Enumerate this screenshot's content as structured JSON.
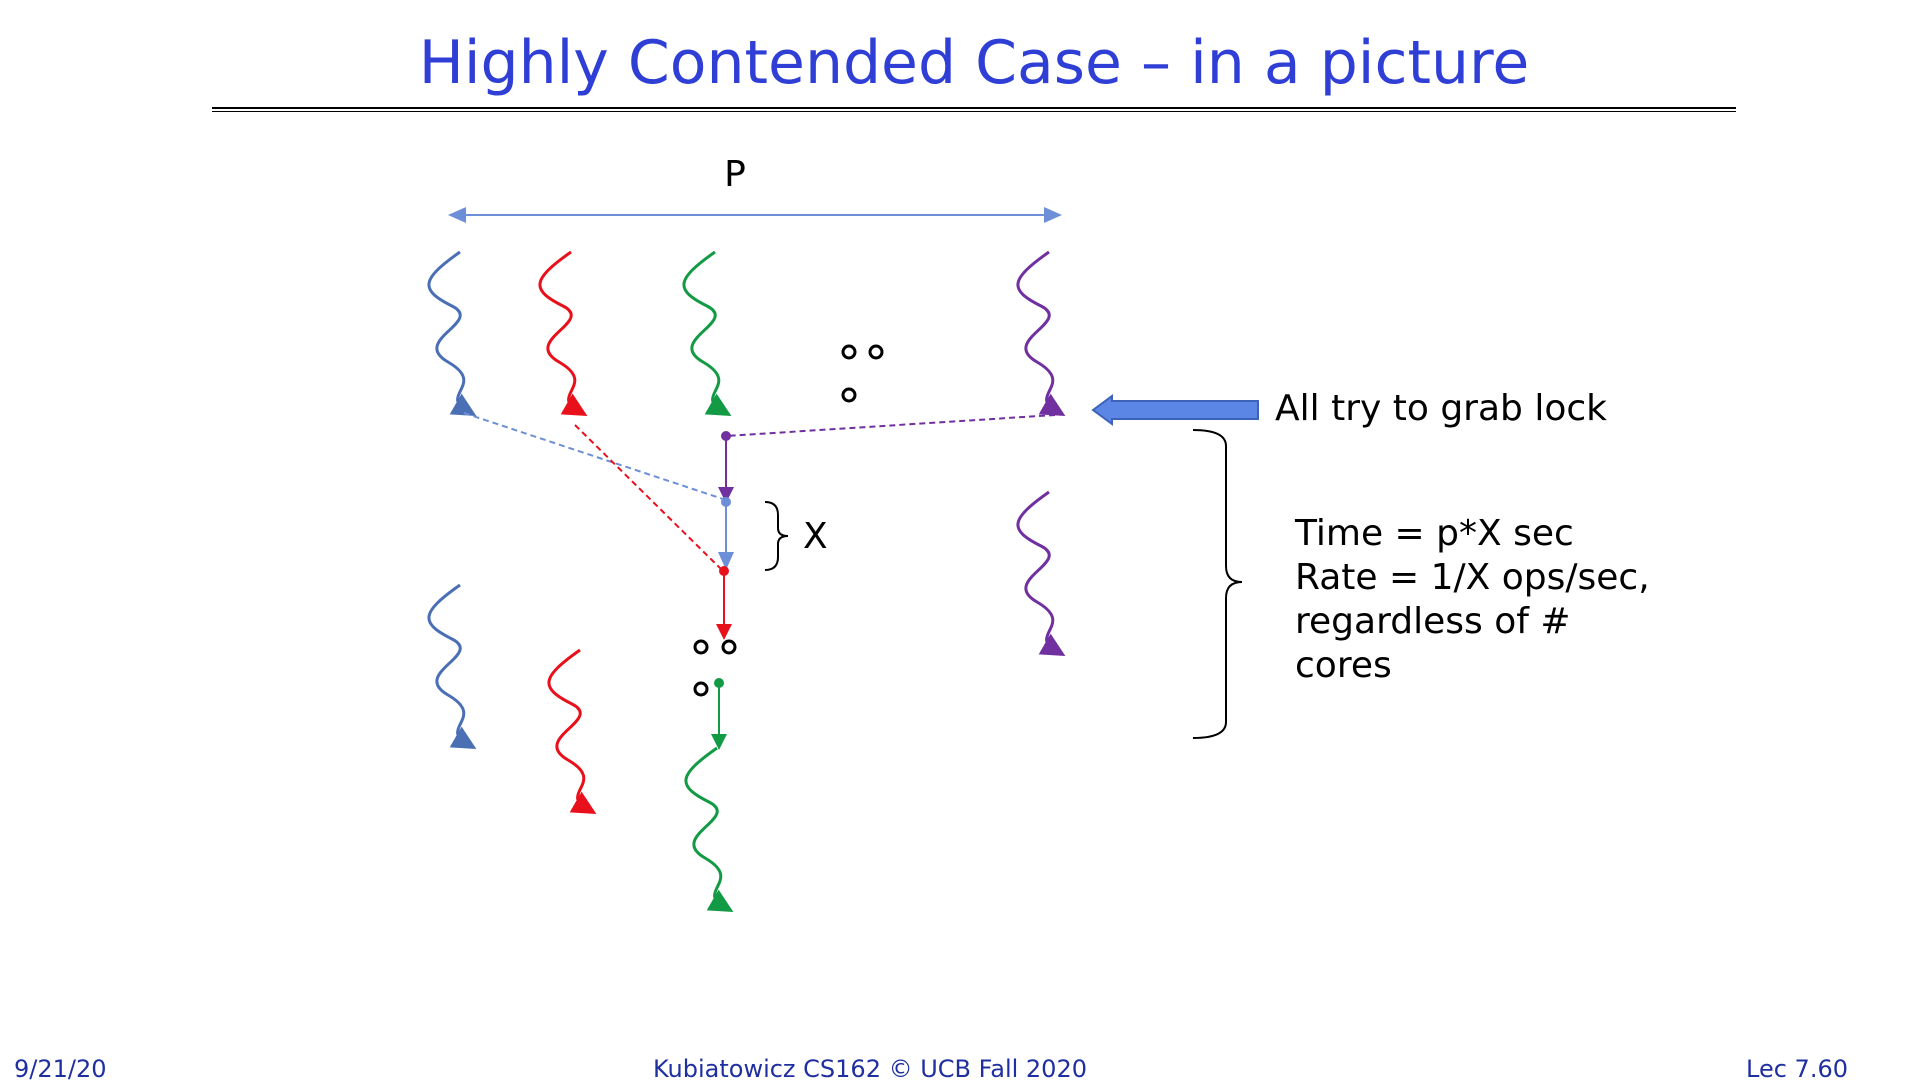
{
  "slide": {
    "title": "Highly Contended Case – in a picture"
  },
  "diagram": {
    "width_label": "P",
    "interval_label": "X",
    "arrow_label": "All try to grab lock",
    "note_lines": [
      "Time = p*X sec",
      "Rate = 1/X ops/sec,",
      "regardless of #",
      "cores"
    ],
    "colors": {
      "blue": "#4a6fb5",
      "red": "#e8111b",
      "green": "#129a44",
      "purple": "#7030a0",
      "span_arrow": "#6c8fd8",
      "block_arrow": "#5b86e5"
    },
    "icons": [
      "ellipsis-dots-icon",
      "block-arrow-icon",
      "brace-icon"
    ]
  },
  "footer": {
    "date": "9/21/20",
    "course": "Kubiatowicz CS162 © UCB Fall 2020",
    "lecture": "Lec 7.60"
  }
}
